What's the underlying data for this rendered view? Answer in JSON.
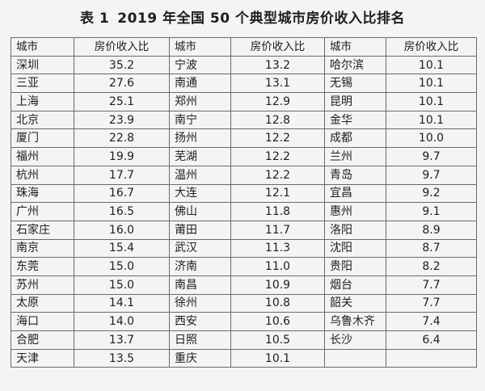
{
  "title": {
    "label": "表 1",
    "text": "2019 年全国 50 个典型城市房价收入比排名"
  },
  "headers": {
    "city": "城市",
    "ratio": "房价收入比"
  },
  "rows": [
    [
      {
        "city": "深圳",
        "ratio": "35.2"
      },
      {
        "city": "宁波",
        "ratio": "13.2"
      },
      {
        "city": "哈尔滨",
        "ratio": "10.1"
      }
    ],
    [
      {
        "city": "三亚",
        "ratio": "27.6"
      },
      {
        "city": "南通",
        "ratio": "13.1"
      },
      {
        "city": "无锡",
        "ratio": "10.1"
      }
    ],
    [
      {
        "city": "上海",
        "ratio": "25.1"
      },
      {
        "city": "郑州",
        "ratio": "12.9"
      },
      {
        "city": "昆明",
        "ratio": "10.1"
      }
    ],
    [
      {
        "city": "北京",
        "ratio": "23.9"
      },
      {
        "city": "南宁",
        "ratio": "12.8"
      },
      {
        "city": "金华",
        "ratio": "10.1"
      }
    ],
    [
      {
        "city": "厦门",
        "ratio": "22.8"
      },
      {
        "city": "扬州",
        "ratio": "12.2"
      },
      {
        "city": "成都",
        "ratio": "10.0"
      }
    ],
    [
      {
        "city": "福州",
        "ratio": "19.9"
      },
      {
        "city": "芜湖",
        "ratio": "12.2"
      },
      {
        "city": "兰州",
        "ratio": "9.7"
      }
    ],
    [
      {
        "city": "杭州",
        "ratio": "17.7"
      },
      {
        "city": "温州",
        "ratio": "12.2"
      },
      {
        "city": "青岛",
        "ratio": "9.7"
      }
    ],
    [
      {
        "city": "珠海",
        "ratio": "16.7"
      },
      {
        "city": "大连",
        "ratio": "12.1"
      },
      {
        "city": "宜昌",
        "ratio": "9.2"
      }
    ],
    [
      {
        "city": "广州",
        "ratio": "16.5"
      },
      {
        "city": "佛山",
        "ratio": "11.8"
      },
      {
        "city": "惠州",
        "ratio": "9.1"
      }
    ],
    [
      {
        "city": "石家庄",
        "ratio": "16.0"
      },
      {
        "city": "莆田",
        "ratio": "11.7"
      },
      {
        "city": "洛阳",
        "ratio": "8.9"
      }
    ],
    [
      {
        "city": "南京",
        "ratio": "15.4"
      },
      {
        "city": "武汉",
        "ratio": "11.3"
      },
      {
        "city": "沈阳",
        "ratio": "8.7"
      }
    ],
    [
      {
        "city": "东莞",
        "ratio": "15.0"
      },
      {
        "city": "济南",
        "ratio": "11.0"
      },
      {
        "city": "贵阳",
        "ratio": "8.2"
      }
    ],
    [
      {
        "city": "苏州",
        "ratio": "15.0"
      },
      {
        "city": "南昌",
        "ratio": "10.9"
      },
      {
        "city": "烟台",
        "ratio": "7.7"
      }
    ],
    [
      {
        "city": "太原",
        "ratio": "14.1"
      },
      {
        "city": "徐州",
        "ratio": "10.8"
      },
      {
        "city": "韶关",
        "ratio": "7.7"
      }
    ],
    [
      {
        "city": "海口",
        "ratio": "14.0"
      },
      {
        "city": "西安",
        "ratio": "10.6"
      },
      {
        "city": "乌鲁木齐",
        "ratio": "7.4"
      }
    ],
    [
      {
        "city": "合肥",
        "ratio": "13.7"
      },
      {
        "city": "日照",
        "ratio": "10.5"
      },
      {
        "city": "长沙",
        "ratio": "6.4"
      }
    ],
    [
      {
        "city": "天津",
        "ratio": "13.5"
      },
      {
        "city": "重庆",
        "ratio": "10.1"
      },
      null
    ]
  ]
}
